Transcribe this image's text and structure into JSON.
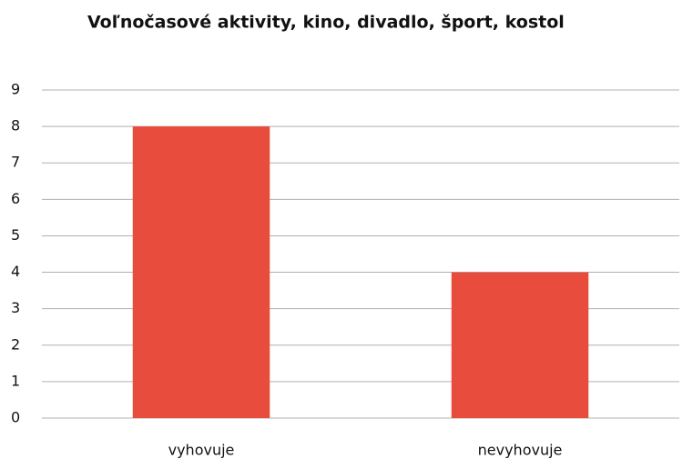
{
  "chart_data": {
    "type": "bar",
    "title": "Voľnočasové aktivity, kino, divadlo, šport, kostol",
    "categories": [
      "vyhovuje",
      "nevyhovuje"
    ],
    "values": [
      8,
      4
    ],
    "color": "#e84c3d",
    "ylim": [
      0,
      9
    ],
    "yticks": [
      0,
      1,
      2,
      3,
      4,
      5,
      6,
      7,
      8,
      9
    ],
    "grid": true
  }
}
